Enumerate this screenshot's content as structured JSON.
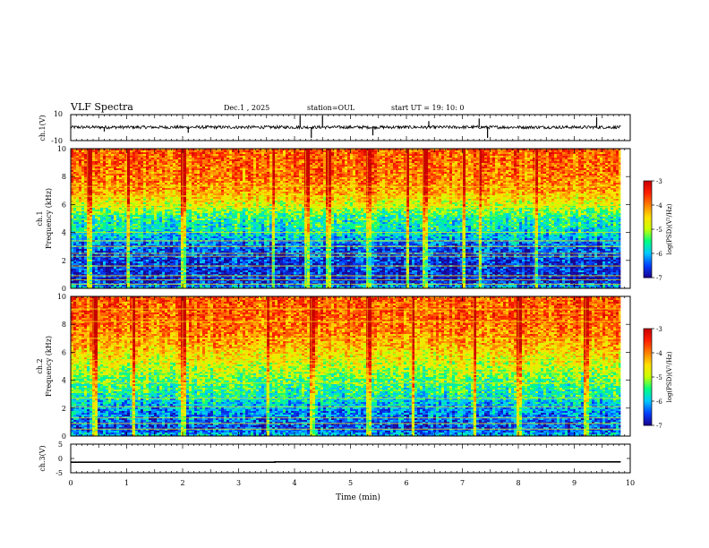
{
  "header": {
    "title": "VLF Spectra",
    "date": "Dec.1 , 2025",
    "station": "station=OUL",
    "start": "start UT =  19: 10: 0"
  },
  "chart_data": [
    {
      "type": "line",
      "name": "waveform-ch1",
      "ylabel": "ch.1(V)",
      "ylim": [
        -10,
        10
      ],
      "yticks": [
        "10",
        "-10"
      ],
      "xlim": [
        0,
        10
      ],
      "x_end": 9.83,
      "baseline": 0.3,
      "noise_amplitude": 1.2,
      "spikes": [
        {
          "x": 0.6,
          "y": -3
        },
        {
          "x": 2.1,
          "y": -4
        },
        {
          "x": 4.1,
          "y": 9
        },
        {
          "x": 4.3,
          "y": -8
        },
        {
          "x": 4.5,
          "y": 9
        },
        {
          "x": 5.4,
          "y": -6
        },
        {
          "x": 6.4,
          "y": 5
        },
        {
          "x": 7.3,
          "y": 7
        },
        {
          "x": 7.45,
          "y": -8
        },
        {
          "x": 9.4,
          "y": 8
        }
      ]
    },
    {
      "type": "heatmap",
      "name": "spectrogram-ch1",
      "ylabel": "ch.1 Frequency (kHz)",
      "ylim": [
        0,
        10
      ],
      "yticks": [
        "0",
        "2",
        "4",
        "6",
        "8",
        "10"
      ],
      "xlim": [
        0,
        10
      ],
      "x_end": 9.83,
      "profile": [
        {
          "f": 0,
          "v": -6.0
        },
        {
          "f": 0.5,
          "v": -6.7
        },
        {
          "f": 2.0,
          "v": -6.6
        },
        {
          "f": 3.0,
          "v": -6.4
        },
        {
          "f": 4.0,
          "v": -5.8
        },
        {
          "f": 5.0,
          "v": -5.6
        },
        {
          "f": 6.0,
          "v": -4.8
        },
        {
          "f": 7.0,
          "v": -4.2
        },
        {
          "f": 8.5,
          "v": -3.9
        },
        {
          "f": 10.0,
          "v": -3.8
        }
      ],
      "horizontal_lines_khz": [
        0.3,
        0.6,
        0.9,
        1.6,
        2.3,
        2.5,
        3.0,
        3.4,
        4.0,
        5.8,
        6.6,
        7.3
      ],
      "bright_columns_min": [
        0.3,
        1.0,
        2.0,
        3.6,
        4.2,
        4.6,
        5.3,
        6.0,
        6.3,
        7.0,
        7.3,
        8.3
      ]
    },
    {
      "type": "heatmap",
      "name": "spectrogram-ch2",
      "ylabel": "ch.2 Frequency (kHz)",
      "ylim": [
        0,
        10
      ],
      "yticks": [
        "0",
        "2",
        "4",
        "6",
        "8",
        "10"
      ],
      "xlim": [
        0,
        10
      ],
      "x_end": 9.83,
      "profile": [
        {
          "f": 0,
          "v": -5.9
        },
        {
          "f": 0.5,
          "v": -6.5
        },
        {
          "f": 2.0,
          "v": -6.1
        },
        {
          "f": 3.0,
          "v": -5.6
        },
        {
          "f": 4.0,
          "v": -5.3
        },
        {
          "f": 5.0,
          "v": -4.9
        },
        {
          "f": 6.0,
          "v": -4.5
        },
        {
          "f": 7.0,
          "v": -4.1
        },
        {
          "f": 8.5,
          "v": -3.8
        },
        {
          "f": 10.0,
          "v": -3.8
        }
      ],
      "horizontal_lines_khz": [
        0.5,
        0.9,
        1.3,
        2.1,
        2.7,
        3.8,
        4.6,
        5.4,
        7.0,
        8.2,
        9.1
      ],
      "bright_columns_min": [
        0.4,
        1.1,
        2.0,
        3.5,
        4.3,
        5.3,
        6.1,
        7.2,
        8.0,
        9.2
      ]
    },
    {
      "type": "line",
      "name": "waveform-ch3",
      "ylabel": "ch.3(V)",
      "ylim": [
        -5,
        5
      ],
      "yticks": [
        "5",
        "0",
        "-5"
      ],
      "xlim": [
        0,
        10
      ],
      "x": [
        0,
        3.65,
        3.65,
        9.83
      ],
      "y": [
        -1.3,
        -1.3,
        -1.2,
        -1.2
      ],
      "xlabel": "Time (min)",
      "xticks": [
        "0",
        "1",
        "2",
        "3",
        "4",
        "5",
        "6",
        "7",
        "8",
        "9",
        "10"
      ]
    }
  ],
  "colorbar": {
    "label": "log(PSD)(V²/Hz)",
    "range": [
      -7,
      -3
    ],
    "ticks": [
      "-3",
      "-4",
      "-5",
      "-6",
      "-7"
    ],
    "colors": [
      "#1a0090",
      "#0040ff",
      "#00c8ff",
      "#00ff80",
      "#c8ff00",
      "#ffe000",
      "#ff8000",
      "#ff2000",
      "#c80000"
    ]
  }
}
